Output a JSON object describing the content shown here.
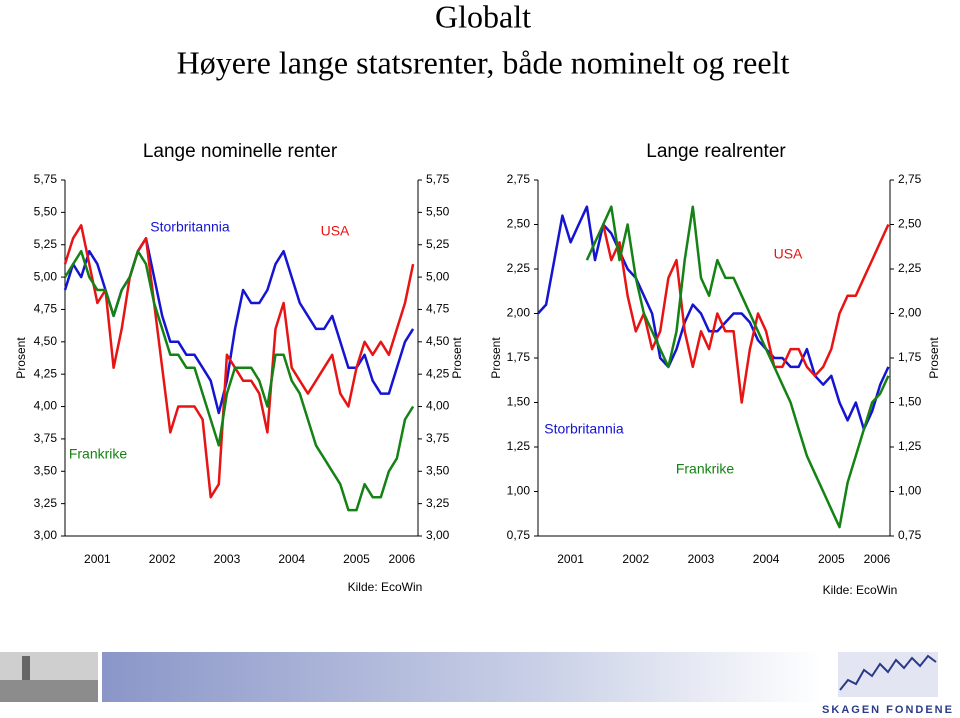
{
  "header": {
    "title": "Globalt",
    "subtitle": "Høyere lange statsrenter, både nominelt og reelt"
  },
  "footer": {
    "logo": "SKAGEN FONDENE"
  },
  "chart_data": [
    {
      "type": "line",
      "title": "Lange nominelle renter",
      "ylabel": "Prosent",
      "source": "Kilde: EcoWin",
      "x": [
        2001,
        2001.125,
        2001.25,
        2001.375,
        2001.5,
        2001.625,
        2001.75,
        2001.875,
        2002,
        2002.125,
        2002.25,
        2002.375,
        2002.5,
        2002.625,
        2002.75,
        2002.875,
        2003,
        2003.125,
        2003.25,
        2003.375,
        2003.5,
        2003.625,
        2003.75,
        2003.875,
        2004,
        2004.125,
        2004.25,
        2004.375,
        2004.5,
        2004.625,
        2004.75,
        2004.875,
        2005,
        2005.125,
        2005.25,
        2005.375,
        2005.5,
        2005.625,
        2005.75,
        2005.875,
        2006,
        2006.125,
        2006.25,
        2006.375
      ],
      "xlim": [
        2001,
        2006.45
      ],
      "xticks": [
        {
          "value": 2001.5,
          "label": "2001"
        },
        {
          "value": 2002.5,
          "label": "2002"
        },
        {
          "value": 2003.5,
          "label": "2003"
        },
        {
          "value": 2004.5,
          "label": "2004"
        },
        {
          "value": 2005.5,
          "label": "2005"
        },
        {
          "value": 2006.2,
          "label": "2006"
        }
      ],
      "ylim": [
        3,
        5.75
      ],
      "yticks": [
        {
          "value": 3,
          "label": "3,00"
        },
        {
          "value": 3.25,
          "label": "3,25"
        },
        {
          "value": 3.5,
          "label": "3,50"
        },
        {
          "value": 3.75,
          "label": "3,75"
        },
        {
          "value": 4,
          "label": "4,00"
        },
        {
          "value": 4.25,
          "label": "4,25"
        },
        {
          "value": 4.5,
          "label": "4,50"
        },
        {
          "value": 4.75,
          "label": "4,75"
        },
        {
          "value": 5,
          "label": "5,00"
        },
        {
          "value": 5.25,
          "label": "5,25"
        },
        {
          "value": 5.5,
          "label": "5,50"
        },
        {
          "value": 5.75,
          "label": "5,75"
        }
      ],
      "series": [
        {
          "name": "Storbritannia",
          "color": "#1414d2",
          "values": [
            4.9,
            5.1,
            5.0,
            5.2,
            5.1,
            4.9,
            4.7,
            4.9,
            5.0,
            5.2,
            5.3,
            5.0,
            4.7,
            4.5,
            4.5,
            4.4,
            4.4,
            4.3,
            4.2,
            3.95,
            4.2,
            4.6,
            4.9,
            4.8,
            4.8,
            4.9,
            5.1,
            5.2,
            5.0,
            4.8,
            4.7,
            4.6,
            4.6,
            4.7,
            4.5,
            4.3,
            4.3,
            4.4,
            4.2,
            4.1,
            4.1,
            4.3,
            4.5,
            4.6
          ]
        },
        {
          "name": "USA",
          "color": "#e81414",
          "values": [
            5.1,
            5.3,
            5.4,
            5.1,
            4.8,
            4.9,
            4.3,
            4.6,
            5.0,
            5.2,
            5.3,
            4.8,
            4.3,
            3.8,
            4.0,
            4.0,
            4.0,
            3.9,
            3.3,
            3.4,
            4.4,
            4.3,
            4.2,
            4.2,
            4.1,
            3.8,
            4.6,
            4.8,
            4.3,
            4.2,
            4.1,
            4.2,
            4.3,
            4.4,
            4.1,
            4.0,
            4.3,
            4.5,
            4.4,
            4.5,
            4.4,
            4.6,
            4.8,
            5.1
          ]
        },
        {
          "name": "Frankrike",
          "color": "#148214",
          "values": [
            5.0,
            5.1,
            5.2,
            5.0,
            4.9,
            4.9,
            4.7,
            4.9,
            5.0,
            5.2,
            5.1,
            4.8,
            4.6,
            4.4,
            4.4,
            4.3,
            4.3,
            4.1,
            3.9,
            3.7,
            4.1,
            4.3,
            4.3,
            4.3,
            4.2,
            4.0,
            4.4,
            4.4,
            4.2,
            4.1,
            3.9,
            3.7,
            3.6,
            3.5,
            3.4,
            3.2,
            3.2,
            3.4,
            3.3,
            3.3,
            3.5,
            3.6,
            3.9,
            4.0
          ]
        }
      ]
    },
    {
      "type": "line",
      "title": "Lange realrenter",
      "ylabel": "Prosent",
      "source": "Kilde: EcoWin",
      "x": [
        2001,
        2001.125,
        2001.25,
        2001.375,
        2001.5,
        2001.625,
        2001.75,
        2001.875,
        2002,
        2002.125,
        2002.25,
        2002.375,
        2002.5,
        2002.625,
        2002.75,
        2002.875,
        2003,
        2003.125,
        2003.25,
        2003.375,
        2003.5,
        2003.625,
        2003.75,
        2003.875,
        2004,
        2004.125,
        2004.25,
        2004.375,
        2004.5,
        2004.625,
        2004.75,
        2004.875,
        2005,
        2005.125,
        2005.25,
        2005.375,
        2005.5,
        2005.625,
        2005.75,
        2005.875,
        2006,
        2006.125,
        2006.25,
        2006.375
      ],
      "xlim": [
        2001,
        2006.4
      ],
      "xticks": [
        {
          "value": 2001.5,
          "label": "2001"
        },
        {
          "value": 2002.5,
          "label": "2002"
        },
        {
          "value": 2003.5,
          "label": "2003"
        },
        {
          "value": 2004.5,
          "label": "2004"
        },
        {
          "value": 2005.5,
          "label": "2005"
        },
        {
          "value": 2006.2,
          "label": "2006"
        }
      ],
      "ylim": [
        0.75,
        2.75
      ],
      "yticks": [
        {
          "value": 0.75,
          "label": "0,75"
        },
        {
          "value": 1,
          "label": "1,00"
        },
        {
          "value": 1.25,
          "label": "1,25"
        },
        {
          "value": 1.5,
          "label": "1,50"
        },
        {
          "value": 1.75,
          "label": "1,75"
        },
        {
          "value": 2,
          "label": "2,00"
        },
        {
          "value": 2.25,
          "label": "2,25"
        },
        {
          "value": 2.5,
          "label": "2,50"
        },
        {
          "value": 2.75,
          "label": "2,75"
        }
      ],
      "series": [
        {
          "name": "Storbritannia",
          "color": "#1414d2",
          "values": [
            2.0,
            2.05,
            2.3,
            2.55,
            2.4,
            2.5,
            2.6,
            2.3,
            2.5,
            2.45,
            2.35,
            2.25,
            2.2,
            2.1,
            2.0,
            1.75,
            1.7,
            1.8,
            1.95,
            2.05,
            2.0,
            1.9,
            1.9,
            1.95,
            2.0,
            2.0,
            1.95,
            1.85,
            1.8,
            1.75,
            1.75,
            1.7,
            1.7,
            1.8,
            1.65,
            1.6,
            1.65,
            1.5,
            1.4,
            1.5,
            1.35,
            1.45,
            1.6,
            1.7
          ]
        },
        {
          "name": "USA",
          "color": "#e81414",
          "values": [
            null,
            null,
            null,
            null,
            null,
            null,
            null,
            null,
            2.5,
            2.3,
            2.4,
            2.1,
            1.9,
            2.0,
            1.8,
            1.9,
            2.2,
            2.3,
            1.9,
            1.7,
            1.9,
            1.8,
            2.0,
            1.9,
            1.9,
            1.5,
            1.8,
            2.0,
            1.9,
            1.7,
            1.7,
            1.8,
            1.8,
            1.7,
            1.65,
            1.7,
            1.8,
            2.0,
            2.1,
            2.1,
            2.2,
            2.3,
            2.4,
            2.5
          ]
        },
        {
          "name": "Frankrike",
          "color": "#148214",
          "values": [
            null,
            null,
            null,
            null,
            null,
            null,
            2.3,
            2.4,
            2.5,
            2.6,
            2.3,
            2.5,
            2.2,
            2.0,
            1.9,
            1.8,
            1.7,
            1.9,
            2.3,
            2.6,
            2.2,
            2.1,
            2.3,
            2.2,
            2.2,
            2.1,
            2.0,
            1.9,
            1.8,
            1.7,
            1.6,
            1.5,
            1.35,
            1.2,
            1.1,
            1.0,
            0.9,
            0.8,
            1.05,
            1.2,
            1.35,
            1.5,
            1.55,
            1.65
          ]
        }
      ]
    }
  ]
}
